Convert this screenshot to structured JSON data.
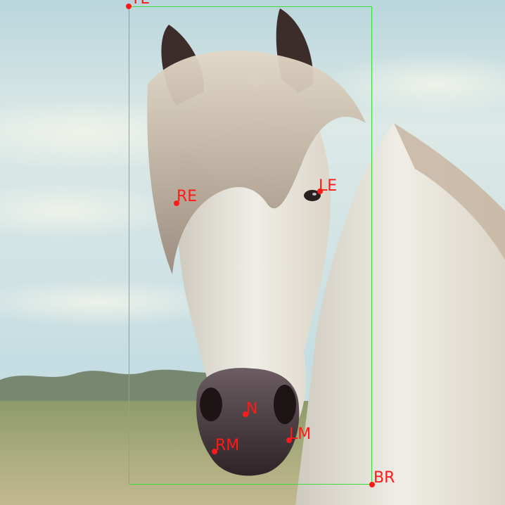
{
  "image": {
    "subject": "photo",
    "colors": {
      "bbox": "#3cdc3c",
      "keypoint": "#ff1a1a"
    }
  },
  "annotations": {
    "bbox": {
      "corners": [
        {
          "id": "top-left",
          "label": "TL"
        },
        {
          "id": "bottom-right",
          "label": "BR"
        }
      ]
    },
    "keypoints": [
      {
        "id": "right-eye",
        "label": "RE"
      },
      {
        "id": "left-eye",
        "label": "LE"
      },
      {
        "id": "nose",
        "label": "N"
      },
      {
        "id": "right-mouth",
        "label": "RM"
      },
      {
        "id": "left-mouth",
        "label": "LM"
      }
    ]
  }
}
